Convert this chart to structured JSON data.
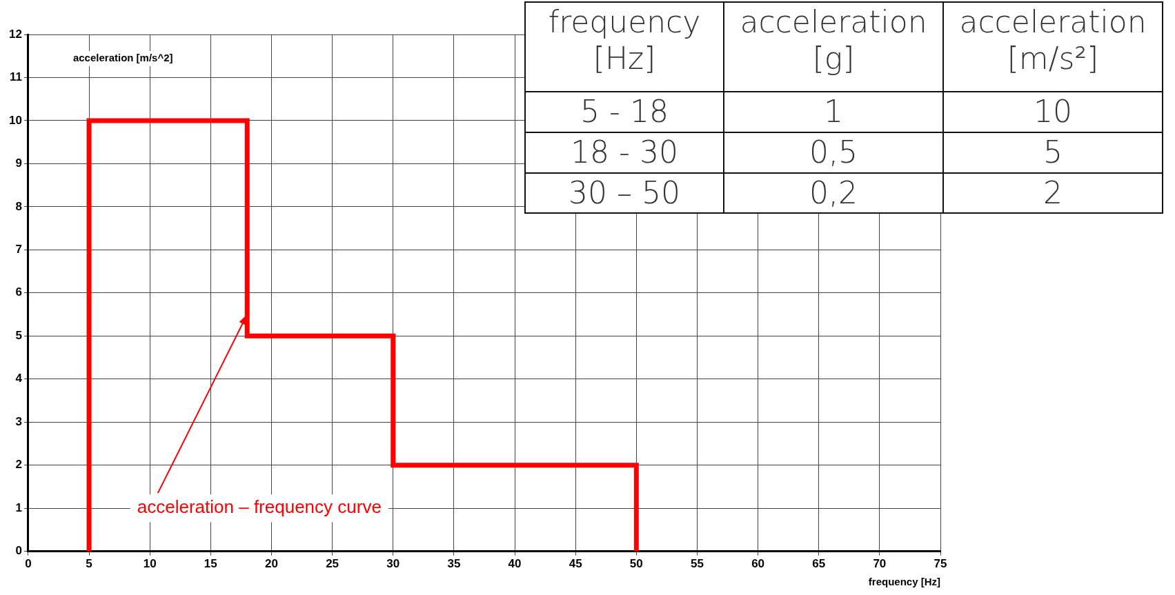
{
  "chart_data": {
    "type": "line",
    "xlabel": "frequency [Hz]",
    "ylabel": "acceleration [m/s^2]",
    "x": [
      5,
      5,
      18,
      18,
      30,
      30,
      50,
      50
    ],
    "series": [
      {
        "color": "#ff0000",
        "values": [
          0,
          10,
          10,
          5,
          5,
          2,
          2,
          0
        ]
      }
    ],
    "xlim": [
      0,
      75
    ],
    "xticks": [
      0,
      5,
      10,
      15,
      20,
      25,
      30,
      35,
      40,
      45,
      50,
      55,
      60,
      65,
      70,
      75
    ],
    "ylim": [
      0,
      12
    ],
    "yticks": [
      0,
      1,
      2,
      3,
      4,
      5,
      6,
      7,
      8,
      9,
      10,
      11,
      12
    ],
    "grid": true,
    "legend": false,
    "marker": "none",
    "line_style": "solid",
    "annotations": [
      {
        "text": "acceleration – frequency curve",
        "x": 18,
        "y": 5.5
      },
      "frequency [Hz]",
      "acceleration [g]",
      "acceleration [m/s²]",
      "5 - 18",
      "1",
      "10",
      "18 - 30",
      "0,5",
      "5",
      "30 – 50",
      "0,2",
      "2"
    ]
  }
}
